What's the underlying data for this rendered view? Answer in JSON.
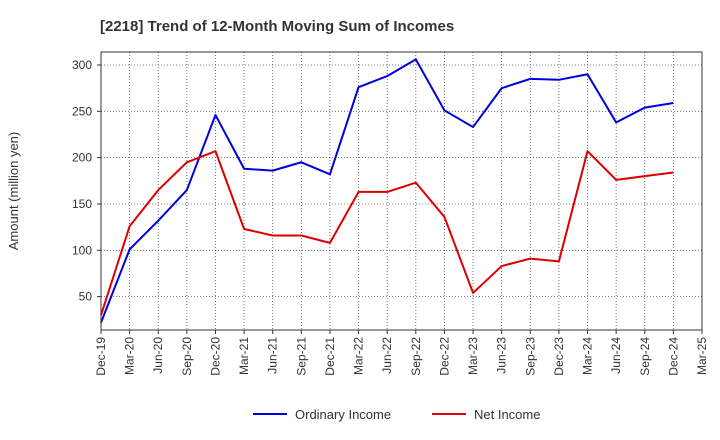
{
  "chart_data": {
    "type": "line",
    "title": "[2218]  Trend of 12-Month Moving Sum of Incomes",
    "xlabel": "",
    "ylabel": "Amount (million yen)",
    "categories": [
      "Dec-19",
      "Mar-20",
      "Jun-20",
      "Sep-20",
      "Dec-20",
      "Mar-21",
      "Jun-21",
      "Sep-21",
      "Dec-21",
      "Mar-22",
      "Jun-22",
      "Sep-22",
      "Dec-22",
      "Mar-23",
      "Jun-23",
      "Sep-23",
      "Dec-23",
      "Mar-24",
      "Jun-24",
      "Sep-24",
      "Dec-24",
      "Mar-25"
    ],
    "yticks": [
      50,
      100,
      150,
      200,
      250,
      300
    ],
    "ylim": [
      14,
      314
    ],
    "grid": true,
    "legend_position": "bottom-center",
    "series": [
      {
        "name": "Ordinary Income",
        "color": "#0000dd",
        "values": [
          22,
          101,
          132,
          165,
          246,
          188,
          186,
          195,
          182,
          276,
          288,
          306,
          251,
          233,
          275,
          285,
          284,
          290,
          238,
          254,
          259,
          null
        ]
      },
      {
        "name": "Net Income",
        "color": "#dd0000",
        "values": [
          30,
          126,
          165,
          195,
          207,
          123,
          116,
          116,
          108,
          163,
          163,
          173,
          136,
          54,
          83,
          91,
          88,
          207,
          176,
          180,
          184,
          null
        ]
      }
    ]
  }
}
